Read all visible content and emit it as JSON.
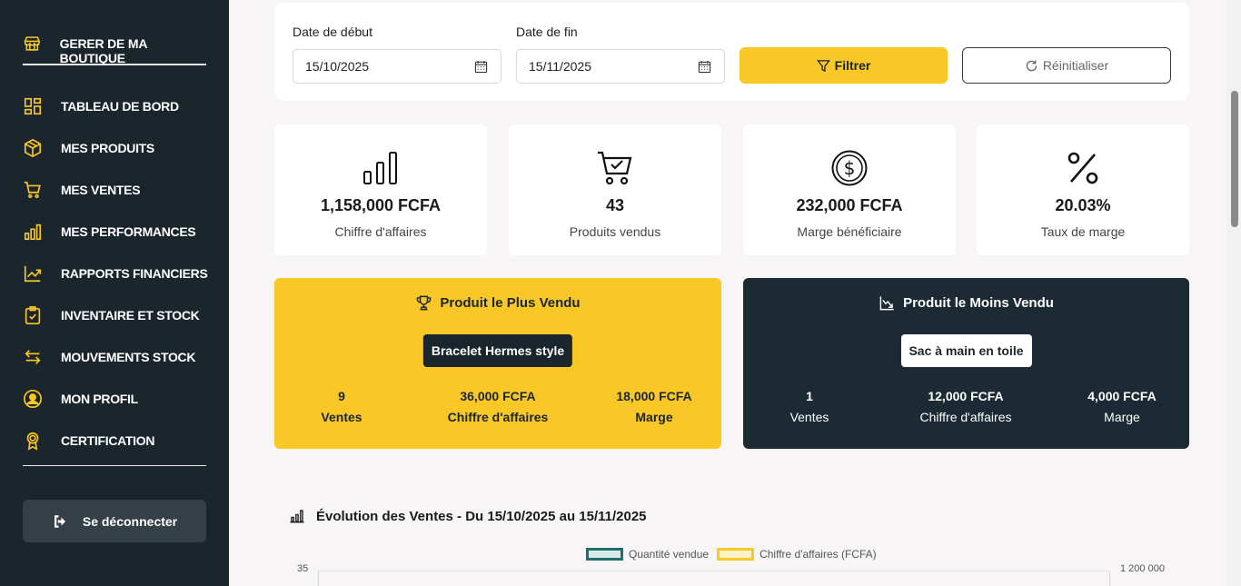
{
  "sidebar": {
    "brand": "GERER DE MA BOUTIQUE",
    "items": [
      {
        "label": "TABLEAU DE BORD",
        "icon": "dashboard-icon"
      },
      {
        "label": "MES PRODUITS",
        "icon": "box-icon"
      },
      {
        "label": "MES VENTES",
        "icon": "cart-icon"
      },
      {
        "label": "MES PERFORMANCES",
        "icon": "bar-chart-icon"
      },
      {
        "label": "RAPPORTS FINANCIERS",
        "icon": "trend-icon"
      },
      {
        "label": "INVENTAIRE ET STOCK",
        "icon": "clipboard-check-icon"
      },
      {
        "label": "MOUVEMENTS STOCK",
        "icon": "arrows-exchange-icon"
      },
      {
        "label": "MON PROFIL",
        "icon": "user-circle-icon"
      },
      {
        "label": "CERTIFICATION",
        "icon": "award-icon"
      }
    ],
    "logout": "Se déconnecter"
  },
  "filters": {
    "start_label": "Date de début",
    "start_value": "15/10/2025",
    "end_label": "Date de fin",
    "end_value": "15/11/2025",
    "filter_button": "Filtrer",
    "reset_button": "Réinitialiser"
  },
  "stats": [
    {
      "value": "1,158,000 FCFA",
      "caption": "Chiffre d'affaires",
      "icon": "bar-chart-icon"
    },
    {
      "value": "43",
      "caption": "Produits vendus",
      "icon": "cart-check-icon"
    },
    {
      "value": "232,000 FCFA",
      "caption": "Marge bénéficiaire",
      "icon": "dollar-coin-icon"
    },
    {
      "value": "20.03%",
      "caption": "Taux de marge",
      "icon": "percent-icon"
    }
  ],
  "best": {
    "title": "Produit le Plus Vendu",
    "name": "Bracelet Hermes style",
    "metrics": [
      {
        "value": "9",
        "label": "Ventes"
      },
      {
        "value": "36,000 FCFA",
        "label": "Chiffre d'affaires"
      },
      {
        "value": "18,000 FCFA",
        "label": "Marge"
      }
    ]
  },
  "worst": {
    "title": "Produit le Moins Vendu",
    "name": "Sac à main en toile",
    "metrics": [
      {
        "value": "1",
        "label": "Ventes"
      },
      {
        "value": "12,000 FCFA",
        "label": "Chiffre d'affaires"
      },
      {
        "value": "4,000 FCFA",
        "label": "Marge"
      }
    ]
  },
  "chart": {
    "title": "Évolution des Ventes - Du 15/10/2025 au 15/11/2025",
    "legend": [
      {
        "label": "Quantité vendue",
        "color": "#1f6e6e"
      },
      {
        "label": "Chiffre d'affaires (FCFA)",
        "color": "#f9c826"
      }
    ],
    "left_axis_top": "35",
    "right_axis_top": "1 200 000"
  },
  "colors": {
    "accent": "#f9c826",
    "sidebar": "#1b262c",
    "dark_card": "#1b2a33"
  }
}
